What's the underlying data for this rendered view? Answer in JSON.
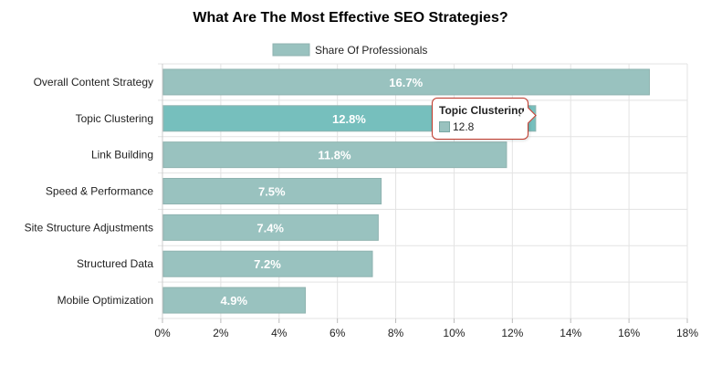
{
  "chart_data": {
    "type": "bar",
    "orientation": "horizontal",
    "title": "What Are The Most Effective SEO Strategies?",
    "categories": [
      "Overall Content Strategy",
      "Topic Clustering",
      "Link Building",
      "Speed & Performance",
      "Site Structure Adjustments",
      "Structured Data",
      "Mobile Optimization"
    ],
    "series": [
      {
        "name": "Share Of Professionals",
        "values": [
          16.7,
          12.8,
          11.8,
          7.5,
          7.4,
          7.2,
          4.9
        ]
      }
    ],
    "data_labels": [
      "16.7%",
      "12.8%",
      "11.8%",
      "7.5%",
      "7.4%",
      "7.2%",
      "4.9%"
    ],
    "xlim": [
      0,
      18
    ],
    "x_ticks": [
      0,
      2,
      4,
      6,
      8,
      10,
      12,
      14,
      16,
      18
    ],
    "x_tick_labels": [
      "0%",
      "2%",
      "4%",
      "6%",
      "8%",
      "10%",
      "12%",
      "14%",
      "16%",
      "18%"
    ],
    "grid": true,
    "legend_position": "top-center",
    "colors": {
      "bar": "#99c2bf",
      "bar_hover": "#76bfbd",
      "bar_stroke": "#8fb3b0",
      "grid": "#e3e3e3",
      "tooltip_border": "#c0392b"
    },
    "highlighted_index": 1
  },
  "tooltip": {
    "title": "Topic Clustering",
    "value": "12.8"
  }
}
